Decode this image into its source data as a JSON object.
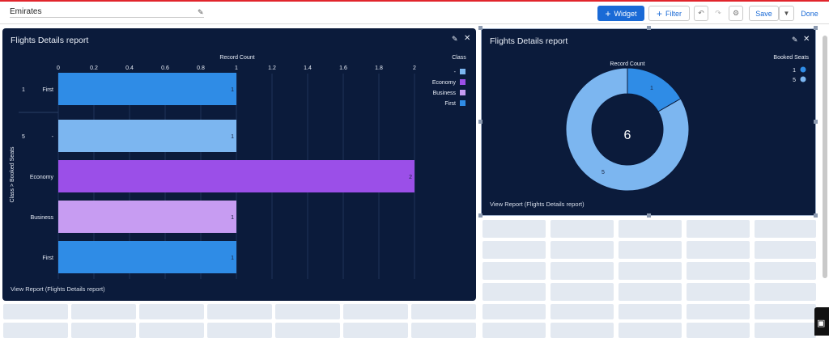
{
  "toolbar": {
    "dashboard_name": "Emirates",
    "widget_label": "Widget",
    "filter_label": "Filter",
    "save_label": "Save",
    "done_label": "Done",
    "colors": {
      "accent": "#1a6ad6",
      "top_line": "#e1252c"
    }
  },
  "bar_widget": {
    "title": "Flights Details report",
    "footer": "View Report (Flights Details report)",
    "x_axis_title": "Record Count",
    "y_axis_title": "Class > Booked Seats",
    "legend_title": "Class",
    "legend": [
      {
        "label": "-",
        "color": "#7cb6f0"
      },
      {
        "label": "Economy",
        "color": "#9b4fe8"
      },
      {
        "label": "Business",
        "color": "#c79cf2"
      },
      {
        "label": "First",
        "color": "#2f8ce6"
      }
    ],
    "ticks": [
      "0",
      "0.2",
      "0.4",
      "0.6",
      "0.8",
      "1",
      "1.2",
      "1.4",
      "1.6",
      "1.8",
      "2"
    ],
    "groups": [
      {
        "label": "1",
        "rows": 1
      },
      {
        "label": "5",
        "rows": 4
      }
    ],
    "rows": [
      {
        "group": "1",
        "label": "First",
        "value_label": "1"
      },
      {
        "group": "5",
        "label": "-",
        "value_label": "1"
      },
      {
        "group": "5",
        "label": "Economy",
        "value_label": "2"
      },
      {
        "group": "5",
        "label": "Business",
        "value_label": "1"
      },
      {
        "group": "5",
        "label": "First",
        "value_label": "1"
      }
    ]
  },
  "donut_widget": {
    "title": "Flights Details report",
    "footer": "View Report (Flights Details report)",
    "measure_label": "Record Count",
    "legend_title": "Booked Seats",
    "total_label": "6",
    "legend": [
      {
        "label": "1",
        "color": "#2f8ce6"
      },
      {
        "label": "5",
        "color": "#7cb6f0"
      }
    ]
  },
  "chart_data": [
    {
      "type": "bar",
      "orientation": "horizontal",
      "title": "Flights Details report",
      "xlabel": "Record Count",
      "ylabel": "Class > Booked Seats",
      "xlim": [
        0,
        2
      ],
      "categories": [
        "1 / First",
        "5 / -",
        "5 / Economy",
        "5 / Business",
        "5 / First"
      ],
      "values": [
        1,
        1,
        2,
        1,
        1
      ],
      "colors": [
        "#2f8ce6",
        "#7cb6f0",
        "#9b4fe8",
        "#c79cf2",
        "#2f8ce6"
      ],
      "legend_position": "right"
    },
    {
      "type": "pie",
      "variant": "donut",
      "title": "Flights Details report",
      "measure": "Record Count",
      "total": 6,
      "categories": [
        "1",
        "5"
      ],
      "values": [
        1,
        5
      ],
      "colors": [
        "#2f8ce6",
        "#7cb6f0"
      ],
      "legend_position": "top-right"
    }
  ]
}
